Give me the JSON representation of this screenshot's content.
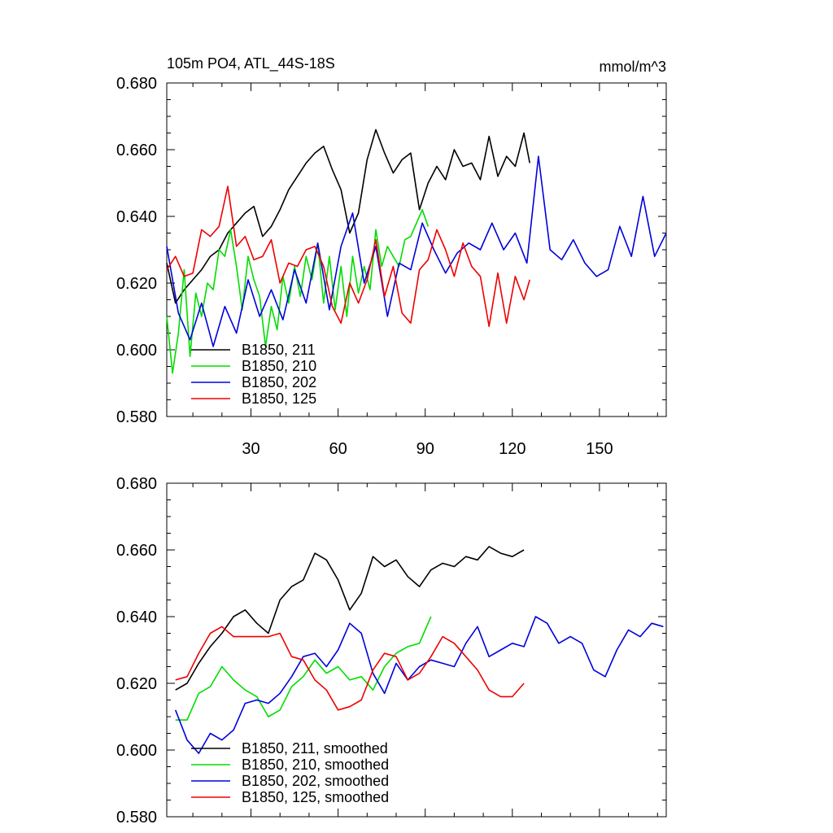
{
  "chart_data": [
    {
      "type": "line",
      "title": "105m PO4, ATL_44S-18S",
      "units": "mmol/m^3",
      "xlim": [
        1,
        173
      ],
      "ylim": [
        0.58,
        0.68
      ],
      "xticks": [
        30,
        60,
        90,
        120,
        150
      ],
      "xtick_labels": [
        "30",
        "60",
        "90",
        "120",
        "150"
      ],
      "yticks": [
        0.58,
        0.6,
        0.62,
        0.64,
        0.66,
        0.68
      ],
      "ytick_labels": [
        "0.580",
        "0.600",
        "0.620",
        "0.640",
        "0.660",
        "0.680"
      ],
      "legend": [
        "B1850, 211",
        "B1850, 210",
        "B1850, 202",
        "B1850, 125"
      ],
      "series": [
        {
          "name": "B1850, 211",
          "color": "#000000",
          "x": [
            1,
            4,
            7,
            10,
            13,
            16,
            19,
            22,
            25,
            28,
            31,
            34,
            37,
            40,
            43,
            46,
            49,
            52,
            55,
            58,
            61,
            64,
            67,
            70,
            73,
            76,
            79,
            82,
            85,
            88,
            91,
            94,
            97,
            100,
            103,
            106,
            109,
            112,
            115,
            118,
            121,
            124,
            126
          ],
          "values": [
            0.626,
            0.614,
            0.618,
            0.621,
            0.624,
            0.628,
            0.63,
            0.635,
            0.638,
            0.641,
            0.643,
            0.634,
            0.637,
            0.642,
            0.648,
            0.652,
            0.656,
            0.659,
            0.661,
            0.654,
            0.648,
            0.635,
            0.641,
            0.657,
            0.666,
            0.659,
            0.653,
            0.657,
            0.659,
            0.642,
            0.65,
            0.655,
            0.651,
            0.66,
            0.655,
            0.656,
            0.651,
            0.664,
            0.652,
            0.658,
            0.655,
            0.665,
            0.656
          ]
        },
        {
          "name": "B1850, 210",
          "color": "#00dd00",
          "x": [
            1,
            3,
            5,
            7,
            9,
            11,
            13,
            15,
            17,
            19,
            21,
            23,
            25,
            27,
            29,
            31,
            33,
            35,
            37,
            39,
            41,
            43,
            45,
            47,
            49,
            51,
            53,
            55,
            57,
            59,
            61,
            63,
            65,
            67,
            69,
            71,
            73,
            75,
            77,
            79,
            81,
            83,
            85,
            87,
            89,
            91
          ],
          "values": [
            0.61,
            0.593,
            0.605,
            0.624,
            0.598,
            0.617,
            0.61,
            0.62,
            0.618,
            0.63,
            0.628,
            0.636,
            0.625,
            0.612,
            0.628,
            0.621,
            0.616,
            0.601,
            0.613,
            0.606,
            0.622,
            0.614,
            0.625,
            0.616,
            0.628,
            0.621,
            0.632,
            0.614,
            0.628,
            0.612,
            0.625,
            0.61,
            0.628,
            0.617,
            0.625,
            0.618,
            0.636,
            0.625,
            0.631,
            0.628,
            0.625,
            0.633,
            0.634,
            0.638,
            0.642,
            0.637
          ]
        },
        {
          "name": "B1850, 202",
          "color": "#0000dd",
          "x": [
            1,
            5,
            9,
            13,
            17,
            21,
            25,
            29,
            33,
            37,
            41,
            45,
            49,
            53,
            57,
            61,
            65,
            69,
            73,
            77,
            81,
            85,
            89,
            93,
            97,
            101,
            105,
            109,
            113,
            117,
            121,
            125,
            129,
            133,
            137,
            141,
            145,
            149,
            153,
            157,
            161,
            165,
            169,
            173
          ],
          "values": [
            0.631,
            0.611,
            0.603,
            0.614,
            0.601,
            0.613,
            0.605,
            0.621,
            0.61,
            0.618,
            0.609,
            0.624,
            0.614,
            0.632,
            0.612,
            0.631,
            0.641,
            0.62,
            0.631,
            0.61,
            0.626,
            0.624,
            0.638,
            0.63,
            0.623,
            0.629,
            0.632,
            0.63,
            0.638,
            0.63,
            0.635,
            0.626,
            0.658,
            0.63,
            0.627,
            0.633,
            0.626,
            0.622,
            0.624,
            0.637,
            0.628,
            0.646,
            0.628,
            0.635
          ]
        },
        {
          "name": "B1850, 125",
          "color": "#ee0000",
          "x": [
            1,
            4,
            7,
            10,
            13,
            16,
            19,
            22,
            25,
            28,
            31,
            34,
            37,
            40,
            43,
            46,
            49,
            52,
            55,
            58,
            61,
            64,
            67,
            70,
            73,
            76,
            79,
            82,
            85,
            88,
            91,
            94,
            97,
            100,
            103,
            106,
            109,
            112,
            115,
            118,
            121,
            124,
            126
          ],
          "values": [
            0.624,
            0.628,
            0.622,
            0.623,
            0.636,
            0.634,
            0.637,
            0.649,
            0.631,
            0.634,
            0.627,
            0.628,
            0.633,
            0.62,
            0.626,
            0.625,
            0.63,
            0.631,
            0.625,
            0.613,
            0.608,
            0.62,
            0.614,
            0.621,
            0.633,
            0.616,
            0.625,
            0.611,
            0.608,
            0.624,
            0.627,
            0.636,
            0.63,
            0.622,
            0.632,
            0.625,
            0.622,
            0.607,
            0.623,
            0.608,
            0.622,
            0.615,
            0.621
          ]
        }
      ]
    },
    {
      "type": "line",
      "title": "",
      "units": "",
      "xlim": [
        1,
        173
      ],
      "ylim": [
        0.58,
        0.68
      ],
      "xticks": [
        30,
        60,
        90,
        120,
        150
      ],
      "xtick_labels": [],
      "yticks": [
        0.58,
        0.6,
        0.62,
        0.64,
        0.66,
        0.68
      ],
      "ytick_labels": [
        "0.580",
        "0.600",
        "0.620",
        "0.640",
        "0.660",
        "0.680"
      ],
      "legend": [
        "B1850, 211, smoothed",
        "B1850, 210, smoothed",
        "B1850, 202, smoothed",
        "B1850, 125, smoothed"
      ],
      "series": [
        {
          "name": "B1850, 211, smoothed",
          "color": "#000000",
          "x": [
            4,
            8,
            12,
            16,
            20,
            24,
            28,
            32,
            36,
            40,
            44,
            48,
            52,
            56,
            60,
            64,
            68,
            72,
            76,
            80,
            84,
            88,
            92,
            96,
            100,
            104,
            108,
            112,
            116,
            120,
            124
          ],
          "values": [
            0.618,
            0.62,
            0.626,
            0.631,
            0.635,
            0.64,
            0.642,
            0.638,
            0.635,
            0.645,
            0.649,
            0.651,
            0.659,
            0.657,
            0.651,
            0.642,
            0.647,
            0.658,
            0.655,
            0.657,
            0.652,
            0.649,
            0.654,
            0.656,
            0.655,
            0.658,
            0.657,
            0.661,
            0.659,
            0.658,
            0.66
          ]
        },
        {
          "name": "B1850, 210, smoothed",
          "color": "#00dd00",
          "x": [
            4,
            8,
            12,
            16,
            20,
            24,
            28,
            32,
            36,
            40,
            44,
            48,
            52,
            56,
            60,
            64,
            68,
            72,
            76,
            80,
            84,
            88,
            92
          ],
          "values": [
            0.609,
            0.609,
            0.617,
            0.619,
            0.625,
            0.621,
            0.618,
            0.616,
            0.61,
            0.612,
            0.619,
            0.622,
            0.627,
            0.623,
            0.625,
            0.621,
            0.622,
            0.618,
            0.625,
            0.629,
            0.631,
            0.632,
            0.64
          ]
        },
        {
          "name": "B1850, 202, smoothed",
          "color": "#0000dd",
          "x": [
            4,
            8,
            12,
            16,
            20,
            24,
            28,
            32,
            36,
            40,
            44,
            48,
            52,
            56,
            60,
            64,
            68,
            72,
            76,
            80,
            84,
            88,
            92,
            96,
            100,
            104,
            108,
            112,
            116,
            120,
            124,
            128,
            132,
            136,
            140,
            144,
            148,
            152,
            156,
            160,
            164,
            168,
            172
          ],
          "values": [
            0.612,
            0.603,
            0.599,
            0.605,
            0.603,
            0.606,
            0.614,
            0.615,
            0.614,
            0.617,
            0.622,
            0.628,
            0.629,
            0.625,
            0.63,
            0.638,
            0.635,
            0.623,
            0.617,
            0.626,
            0.621,
            0.625,
            0.627,
            0.626,
            0.625,
            0.632,
            0.637,
            0.628,
            0.63,
            0.632,
            0.631,
            0.64,
            0.638,
            0.632,
            0.634,
            0.632,
            0.624,
            0.622,
            0.63,
            0.636,
            0.634,
            0.638,
            0.637
          ]
        },
        {
          "name": "B1850, 125, smoothed",
          "color": "#ee0000",
          "x": [
            4,
            8,
            12,
            16,
            20,
            24,
            28,
            32,
            36,
            40,
            44,
            48,
            52,
            56,
            60,
            64,
            68,
            72,
            76,
            80,
            84,
            88,
            92,
            96,
            100,
            104,
            108,
            112,
            116,
            120,
            124
          ],
          "values": [
            0.621,
            0.622,
            0.629,
            0.635,
            0.637,
            0.634,
            0.634,
            0.634,
            0.634,
            0.635,
            0.628,
            0.627,
            0.621,
            0.618,
            0.612,
            0.613,
            0.615,
            0.624,
            0.629,
            0.628,
            0.621,
            0.623,
            0.628,
            0.634,
            0.632,
            0.628,
            0.624,
            0.618,
            0.616,
            0.616,
            0.62
          ]
        }
      ]
    }
  ]
}
